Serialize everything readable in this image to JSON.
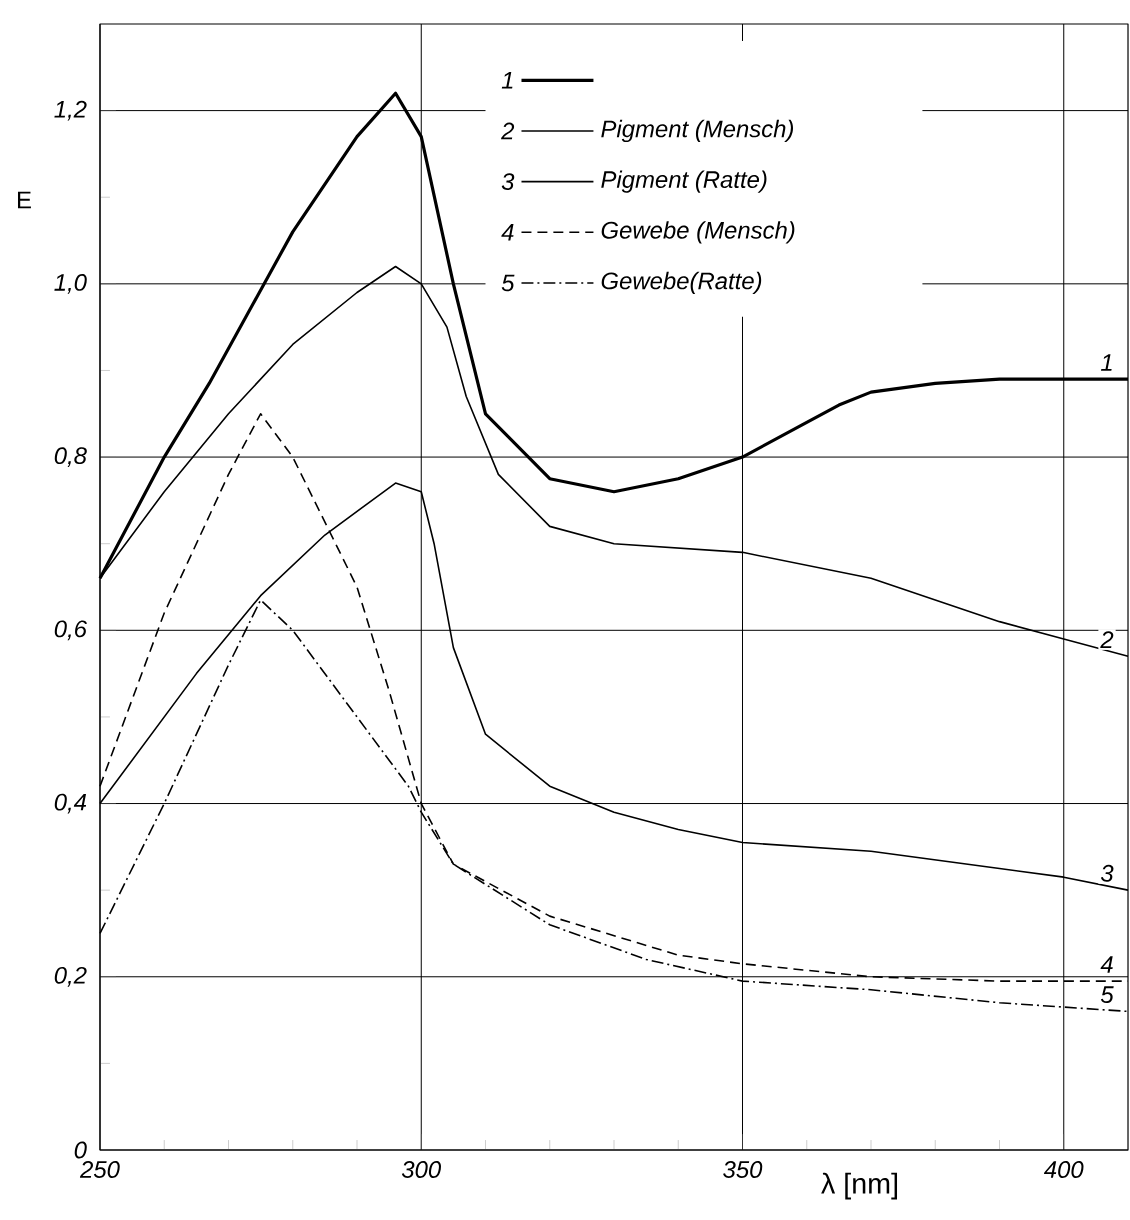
{
  "chart_data": {
    "type": "line",
    "xlabel": "λ [nm]",
    "ylabel": "E",
    "xlim": [
      250,
      410
    ],
    "ylim": [
      0,
      1.3
    ],
    "xticks": [
      250,
      300,
      350,
      400
    ],
    "yticks": [
      0,
      {
        "value": 0.2,
        "label": "0,2"
      },
      {
        "value": 0.4,
        "label": "0,4"
      },
      {
        "value": 0.6,
        "label": "0,6"
      },
      {
        "value": 0.8,
        "label": "0,8"
      },
      {
        "value": 1.0,
        "label": "1,0"
      },
      {
        "value": 1.2,
        "label": "1,2"
      }
    ],
    "grid": true,
    "legend": "top",
    "marker": "none",
    "series": [
      {
        "color": "#000000",
        "line_style": "solid",
        "x": [
          250,
          260,
          267,
          280,
          290,
          296,
          300,
          305,
          310,
          320,
          330,
          340,
          350,
          360,
          365,
          370,
          380,
          390,
          410
        ],
        "values": [
          0.66,
          0.8,
          0.885,
          1.06,
          1.17,
          1.22,
          1.17,
          1.0,
          0.85,
          0.775,
          0.76,
          0.775,
          0.8,
          0.84,
          0.86,
          0.875,
          0.885,
          0.89,
          0.89
        ]
      },
      {
        "name": "Pigment (Mensch)",
        "color": "#000000",
        "line_style": "solid",
        "x": [
          250,
          260,
          270,
          280,
          290,
          296,
          300,
          304,
          307,
          312,
          320,
          330,
          350,
          370,
          390,
          400,
          410
        ],
        "values": [
          0.66,
          0.76,
          0.85,
          0.93,
          0.99,
          1.02,
          1.0,
          0.95,
          0.87,
          0.78,
          0.72,
          0.7,
          0.69,
          0.66,
          0.61,
          0.59,
          0.57
        ]
      },
      {
        "name": "Pigment (Ratte)",
        "color": "#000000",
        "line_style": "solid",
        "x": [
          250,
          265,
          275,
          285,
          296,
          300,
          302,
          305,
          310,
          320,
          330,
          340,
          350,
          370,
          390,
          400,
          410
        ],
        "values": [
          0.4,
          0.55,
          0.64,
          0.71,
          0.77,
          0.76,
          0.7,
          0.58,
          0.48,
          0.42,
          0.39,
          0.37,
          0.355,
          0.345,
          0.325,
          0.315,
          0.3
        ]
      },
      {
        "name": "Gewebe (Mensch)",
        "color": "#000000",
        "line_style": "dashed",
        "x": [
          250,
          260,
          270,
          275,
          280,
          290,
          295,
          300,
          305,
          320,
          340,
          350,
          370,
          390,
          410
        ],
        "values": [
          0.42,
          0.62,
          0.78,
          0.85,
          0.8,
          0.65,
          0.53,
          0.4,
          0.33,
          0.27,
          0.225,
          0.215,
          0.2,
          0.195,
          0.195
        ]
      },
      {
        "name": "Gewebe(Ratte)",
        "color": "#000000",
        "line_style": "dashdot",
        "x": [
          250,
          260,
          270,
          275,
          280,
          290,
          298,
          300,
          305,
          320,
          335,
          350,
          370,
          390,
          410
        ],
        "values": [
          0.25,
          0.4,
          0.56,
          0.635,
          0.6,
          0.5,
          0.42,
          0.39,
          0.33,
          0.26,
          0.22,
          0.195,
          0.185,
          0.17,
          0.16
        ]
      }
    ],
    "annotations": [
      "1",
      "2",
      "3",
      "4",
      "5",
      "1",
      "2",
      "3",
      "4",
      "5"
    ]
  }
}
